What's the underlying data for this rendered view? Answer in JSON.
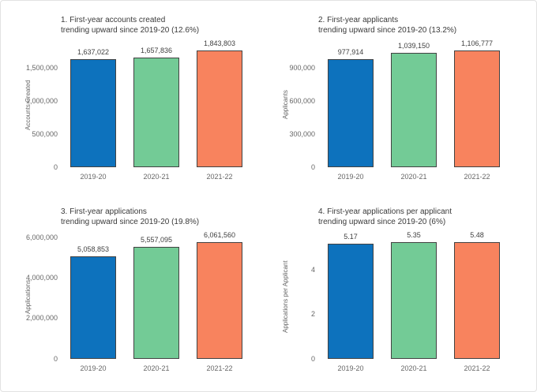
{
  "colors": {
    "bars": [
      "#0d72bd",
      "#73cb96",
      "#f8835e"
    ],
    "bar_border": "#424242",
    "tick_text": "#666666",
    "value_text": "#3f3f3f",
    "title_text": "#3a3a3a"
  },
  "chart_data": [
    {
      "type": "bar",
      "title": "1. First-year accounts created\ntrending upward since 2019-20 (12.6%)",
      "ylabel": "Accounts Created",
      "xlabel": "",
      "categories": [
        "2019-20",
        "2020-21",
        "2021-22"
      ],
      "values": [
        1637022,
        1657836,
        1843803
      ],
      "value_labels": [
        "1,637,022",
        "1,657,836",
        "1,843,803"
      ],
      "yticks": [
        0,
        500000,
        1000000,
        1500000
      ],
      "ytick_labels": [
        "0",
        "500,000",
        "1,000,000",
        "1,500,000"
      ],
      "ylim": [
        0,
        1930000
      ],
      "grid": false,
      "legend": false
    },
    {
      "type": "bar",
      "title": "2. First-year applicants\ntrending upward since 2019-20 (13.2%)",
      "ylabel": "Applicants",
      "xlabel": "",
      "categories": [
        "2019-20",
        "2020-21",
        "2021-22"
      ],
      "values": [
        977914,
        1039150,
        1106777
      ],
      "value_labels": [
        "977,914",
        "1,039,150",
        "1,106,777"
      ],
      "yticks": [
        0,
        300000,
        600000,
        900000
      ],
      "ytick_labels": [
        "0",
        "300,000",
        "600,000",
        "900,000"
      ],
      "ylim": [
        0,
        1160000
      ],
      "grid": false,
      "legend": false
    },
    {
      "type": "bar",
      "title": "3. First-year applications\ntrending upward since 2019-20 (19.8%)",
      "ylabel": "Applications",
      "xlabel": "",
      "categories": [
        "2019-20",
        "2020-21",
        "2021-22"
      ],
      "values": [
        5058853,
        5557095,
        6061560
      ],
      "value_labels": [
        "5,058,853",
        "5,557,095",
        "6,061,560"
      ],
      "yticks": [
        0,
        2000000,
        4000000,
        6000000
      ],
      "ytick_labels": [
        "0",
        "2,000,000",
        "4,000,000",
        "6,000,000"
      ],
      "ylim": [
        0,
        6350000
      ],
      "grid": false,
      "legend": false
    },
    {
      "type": "bar",
      "title": "4. First-year applications per applicant\ntrending upward since 2019-20 (6%)",
      "ylabel": "Applications per Applicant",
      "xlabel": "",
      "categories": [
        "2019-20",
        "2020-21",
        "2021-22"
      ],
      "values": [
        5.17,
        5.35,
        5.48
      ],
      "value_labels": [
        "5.17",
        "5.35",
        "5.48"
      ],
      "yticks": [
        0,
        2,
        4
      ],
      "ytick_labels": [
        "0",
        "2",
        "4"
      ],
      "ylim": [
        0,
        5.74
      ],
      "grid": false,
      "legend": false
    }
  ]
}
